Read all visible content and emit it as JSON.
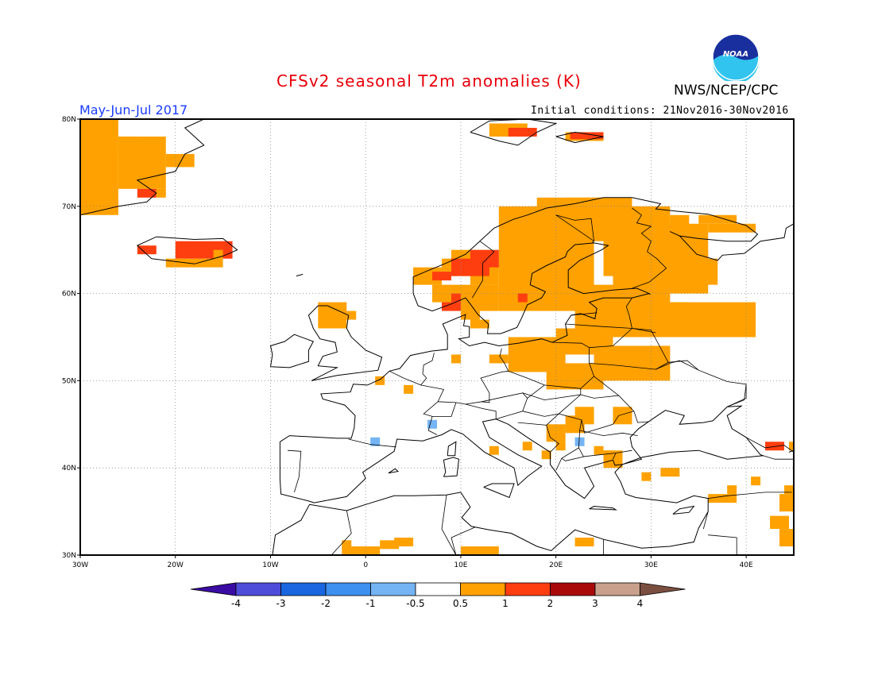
{
  "header": {
    "title": "CFSv2 seasonal T2m anomalies (K)",
    "period": "May-Jun-Jul 2017",
    "initial_conditions": "Initial conditions: 21Nov2016-30Nov2016",
    "organization": "NWS/NCEP/CPC",
    "logo_text": "NOAA"
  },
  "map": {
    "lon_range": [
      -30,
      45
    ],
    "lat_range": [
      30,
      80
    ],
    "lat_ticks": [
      "30N",
      "40N",
      "50N",
      "60N",
      "70N",
      "80N"
    ],
    "lon_ticks": [
      "30W",
      "20W",
      "10W",
      "0",
      "10E",
      "20E",
      "30E",
      "40E"
    ]
  },
  "colorbar": {
    "labels": [
      "-4",
      "-3",
      "-2",
      "-1",
      "-0.5",
      "0.5",
      "1",
      "2",
      "3",
      "4"
    ],
    "colors": [
      "#3a0ca3",
      "#4d4dd9",
      "#1a66e0",
      "#3d8ff0",
      "#74b4f5",
      "#ffffff",
      "#ffa100",
      "#ff3e10",
      "#a80a0a",
      "#c9a08c",
      "#7b4f40"
    ]
  },
  "anomaly_colors": {
    "warm_05_1": "#ffa100",
    "warm_1_2": "#ff3e10",
    "cool_05_1": "#74b4f5"
  }
}
